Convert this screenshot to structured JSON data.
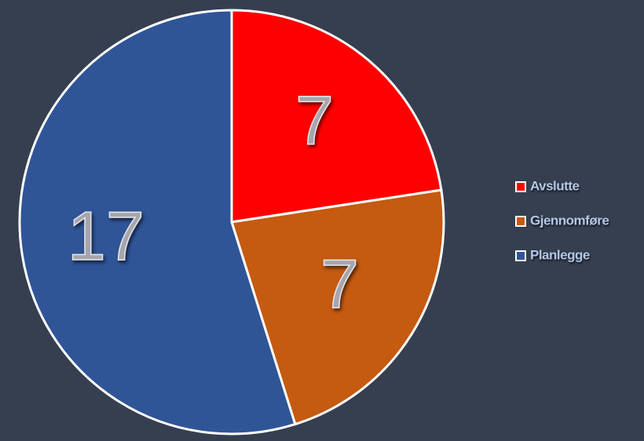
{
  "chart_data": {
    "type": "pie",
    "categories": [
      "Avslutte",
      "Gjennomføre",
      "Planlegge"
    ],
    "values": [
      7,
      7,
      17
    ],
    "colors": [
      "#ff0000",
      "#c55a11",
      "#2f5597"
    ],
    "legend": "right"
  }
}
